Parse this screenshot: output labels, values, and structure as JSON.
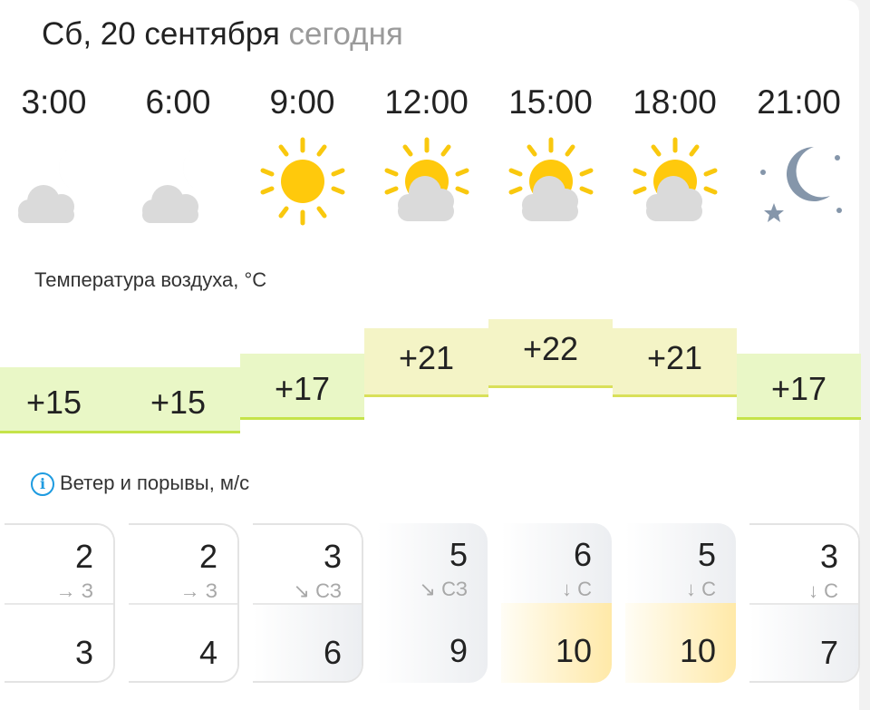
{
  "header": {
    "date": "Сб, 20 сентября",
    "today_label": "сегодня"
  },
  "hours": [
    {
      "time": "3:00",
      "icon": "cloud-moon-icon",
      "temp": "+15",
      "temp_value": 15,
      "wind": "2",
      "dir_arrow": "→",
      "dir": "З",
      "gust": "3",
      "top_bg": "none",
      "bot_bg": "none"
    },
    {
      "time": "6:00",
      "icon": "cloud-moon-icon",
      "temp": "+15",
      "temp_value": 15,
      "wind": "2",
      "dir_arrow": "→",
      "dir": "З",
      "gust": "4",
      "top_bg": "none",
      "bot_bg": "none"
    },
    {
      "time": "9:00",
      "icon": "sun-icon",
      "temp": "+17",
      "temp_value": 17,
      "wind": "3",
      "dir_arrow": "↘",
      "dir": "СЗ",
      "gust": "6",
      "top_bg": "none",
      "bot_bg": "gray"
    },
    {
      "time": "12:00",
      "icon": "sun-cloud-icon",
      "temp": "+21",
      "temp_value": 21,
      "wind": "5",
      "dir_arrow": "↘",
      "dir": "СЗ",
      "gust": "9",
      "top_bg": "gray",
      "bot_bg": "gray"
    },
    {
      "time": "15:00",
      "icon": "sun-cloud-icon",
      "temp": "+22",
      "temp_value": 22,
      "wind": "6",
      "dir_arrow": "↓",
      "dir": "С",
      "gust": "10",
      "top_bg": "gray",
      "bot_bg": "yellow"
    },
    {
      "time": "18:00",
      "icon": "sun-cloud-icon",
      "temp": "+21",
      "temp_value": 21,
      "wind": "5",
      "dir_arrow": "↓",
      "dir": "С",
      "gust": "10",
      "top_bg": "gray",
      "bot_bg": "yellow"
    },
    {
      "time": "21:00",
      "icon": "moon-stars-icon",
      "temp": "+17",
      "temp_value": 17,
      "wind": "3",
      "dir_arrow": "↓",
      "dir": "С",
      "gust": "7",
      "top_bg": "none",
      "bot_bg": "gray"
    }
  ],
  "temperature": {
    "label": "Температура воздуха, °C",
    "colors": {
      "warm": "#e9f7c6",
      "warm_border": "#c5e34a",
      "hot": "#f4f4c6",
      "hot_border": "#d9e05a"
    }
  },
  "wind": {
    "label": "Ветер и порывы, м/с",
    "info_icon": "i"
  }
}
